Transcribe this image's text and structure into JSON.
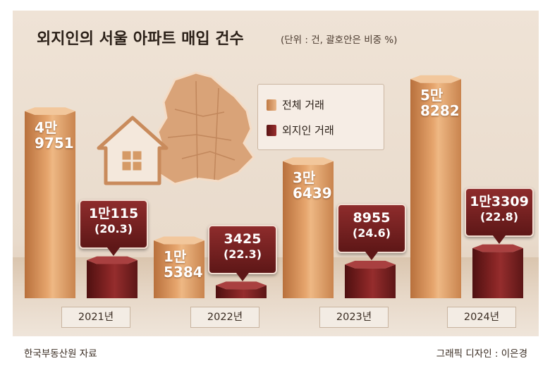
{
  "title": "외지인의 서울 아파트 매입 건수",
  "unit_note": "(단위 : 건, 괄호안은 비중 %)",
  "legend": [
    {
      "label": "전체 거래",
      "color": "#d99a63"
    },
    {
      "label": "외지인 거래",
      "color": "#7a1f20"
    }
  ],
  "chart_data": {
    "type": "bar",
    "categories": [
      "2021년",
      "2022년",
      "2023년",
      "2024년"
    ],
    "series": [
      {
        "name": "전체 거래",
        "values": [
          49751,
          15384,
          36439,
          58282
        ],
        "labels": [
          [
            "4만",
            "9751"
          ],
          [
            "1만",
            "5384"
          ],
          [
            "3만",
            "6439"
          ],
          [
            "5만",
            "8282"
          ]
        ]
      },
      {
        "name": "외지인 거래",
        "values": [
          10115,
          3425,
          8955,
          13309
        ],
        "labels": [
          "1만115",
          "3425",
          "8955",
          "1만3309"
        ],
        "share_pct": [
          20.3,
          22.3,
          24.6,
          22.8
        ],
        "share_labels": [
          "(20.3)",
          "(22.3)",
          "(24.6)",
          "(22.8)"
        ]
      }
    ],
    "ylim": [
      0,
      60000
    ]
  },
  "footer": {
    "source": "한국부동산원 자료",
    "credit": "그래픽 디자인 : 이은경"
  }
}
